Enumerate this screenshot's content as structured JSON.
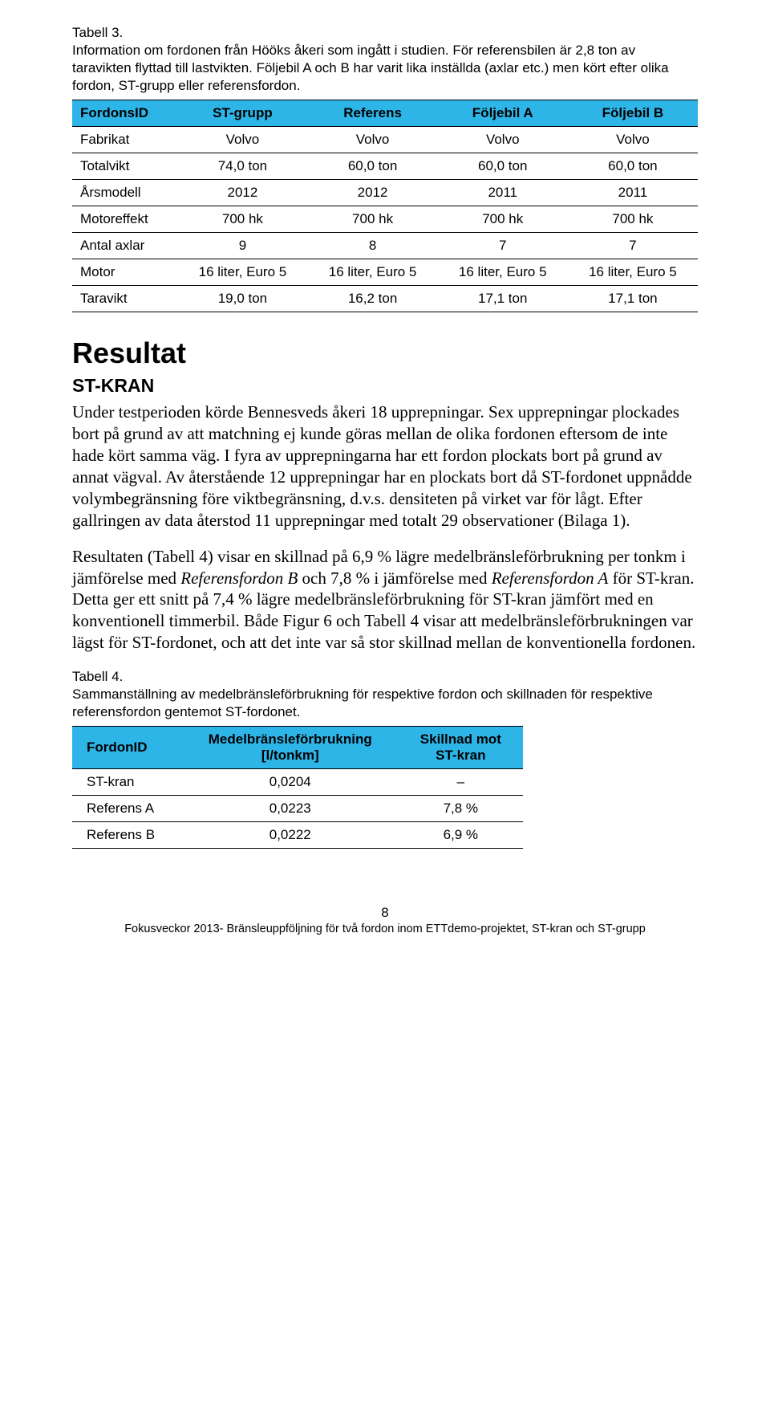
{
  "header_bg": "#2eb5e8",
  "table3": {
    "caption_lines": [
      "Tabell 3.",
      "Information om fordonen från Hööks åkeri som ingått i studien. För referensbilen är 2,8 ton av taravikten flyttad till lastvikten. Följebil A och B har varit lika inställda (axlar etc.) men kört efter olika fordon, ST-grupp eller referensfordon."
    ],
    "columns": [
      "FordonsID",
      "ST-grupp",
      "Referens",
      "Följebil A",
      "Följebil B"
    ],
    "rows": [
      [
        "Fabrikat",
        "Volvo",
        "Volvo",
        "Volvo",
        "Volvo"
      ],
      [
        "Totalvikt",
        "74,0 ton",
        "60,0 ton",
        "60,0 ton",
        "60,0 ton"
      ],
      [
        "Årsmodell",
        "2012",
        "2012",
        "2011",
        "2011"
      ],
      [
        "Motoreffekt",
        "700 hk",
        "700 hk",
        "700 hk",
        "700 hk"
      ],
      [
        "Antal axlar",
        "9",
        "8",
        "7",
        "7"
      ],
      [
        "Motor",
        "16 liter, Euro 5",
        "16 liter, Euro 5",
        "16 liter, Euro 5",
        "16 liter, Euro 5"
      ],
      [
        "Taravikt",
        "19,0 ton",
        "16,2 ton",
        "17,1 ton",
        "17,1 ton"
      ]
    ]
  },
  "heading_resultat": "Resultat",
  "heading_stkran": "ST-KRAN",
  "para1_parts": [
    {
      "t": "Under testperioden körde Bennesveds åkeri 18 upprepningar. Sex upprepningar plockades bort på grund av att matchning ej kunde göras mellan de olika fordonen eftersom de inte hade kört samma väg. I fyra av upprepningarna har ett fordon plockats bort på grund av annat vägval. Av återstående 12 upprepningar har en plockats bort då ST-fordonet uppnådde volymbegränsning före viktbegränsning, d.v.s. densiteten på virket var för lågt. Efter gallringen av data återstod 11 upprepningar med totalt 29 observationer (Bilaga 1).",
      "i": false
    }
  ],
  "para2_parts": [
    {
      "t": "Resultaten (Tabell 4) visar en skillnad på 6,9 % lägre medelbränsleförbrukning per tonkm i jämförelse med ",
      "i": false
    },
    {
      "t": "Referensfordon B",
      "i": true
    },
    {
      "t": " och 7,8 % i jämförelse med ",
      "i": false
    },
    {
      "t": "Referensfordon A",
      "i": true
    },
    {
      "t": " för ST-kran. Detta ger ett snitt på 7,4 % lägre medelbränsleförbrukning för ST-kran jämfört med en konventionell timmerbil. Både Figur 6 och Tabell 4 visar att medelbränsleförbrukningen var lägst för ST-fordonet, och att det inte var så stor skillnad mellan de konventionella fordonen.",
      "i": false
    }
  ],
  "table4": {
    "caption_lines": [
      "Tabell 4.",
      "Sammanställning av medelbränsleförbrukning för respektive fordon och skillnaden för respektive referensfordon gentemot ST-fordonet."
    ],
    "columns": [
      "FordonID",
      "Medelbränsleförbrukning\n[l/tonkm]",
      "Skillnad mot\nST-kran"
    ],
    "rows": [
      [
        "ST-kran",
        "0,0204",
        "–"
      ],
      [
        "Referens A",
        "0,0223",
        "7,8 %"
      ],
      [
        "Referens B",
        "0,0222",
        "6,9 %"
      ]
    ]
  },
  "footer": {
    "page": "8",
    "line": "Fokusveckor 2013- Bränsleuppföljning för två fordon inom ETTdemo-projektet, ST-kran och ST-grupp"
  }
}
